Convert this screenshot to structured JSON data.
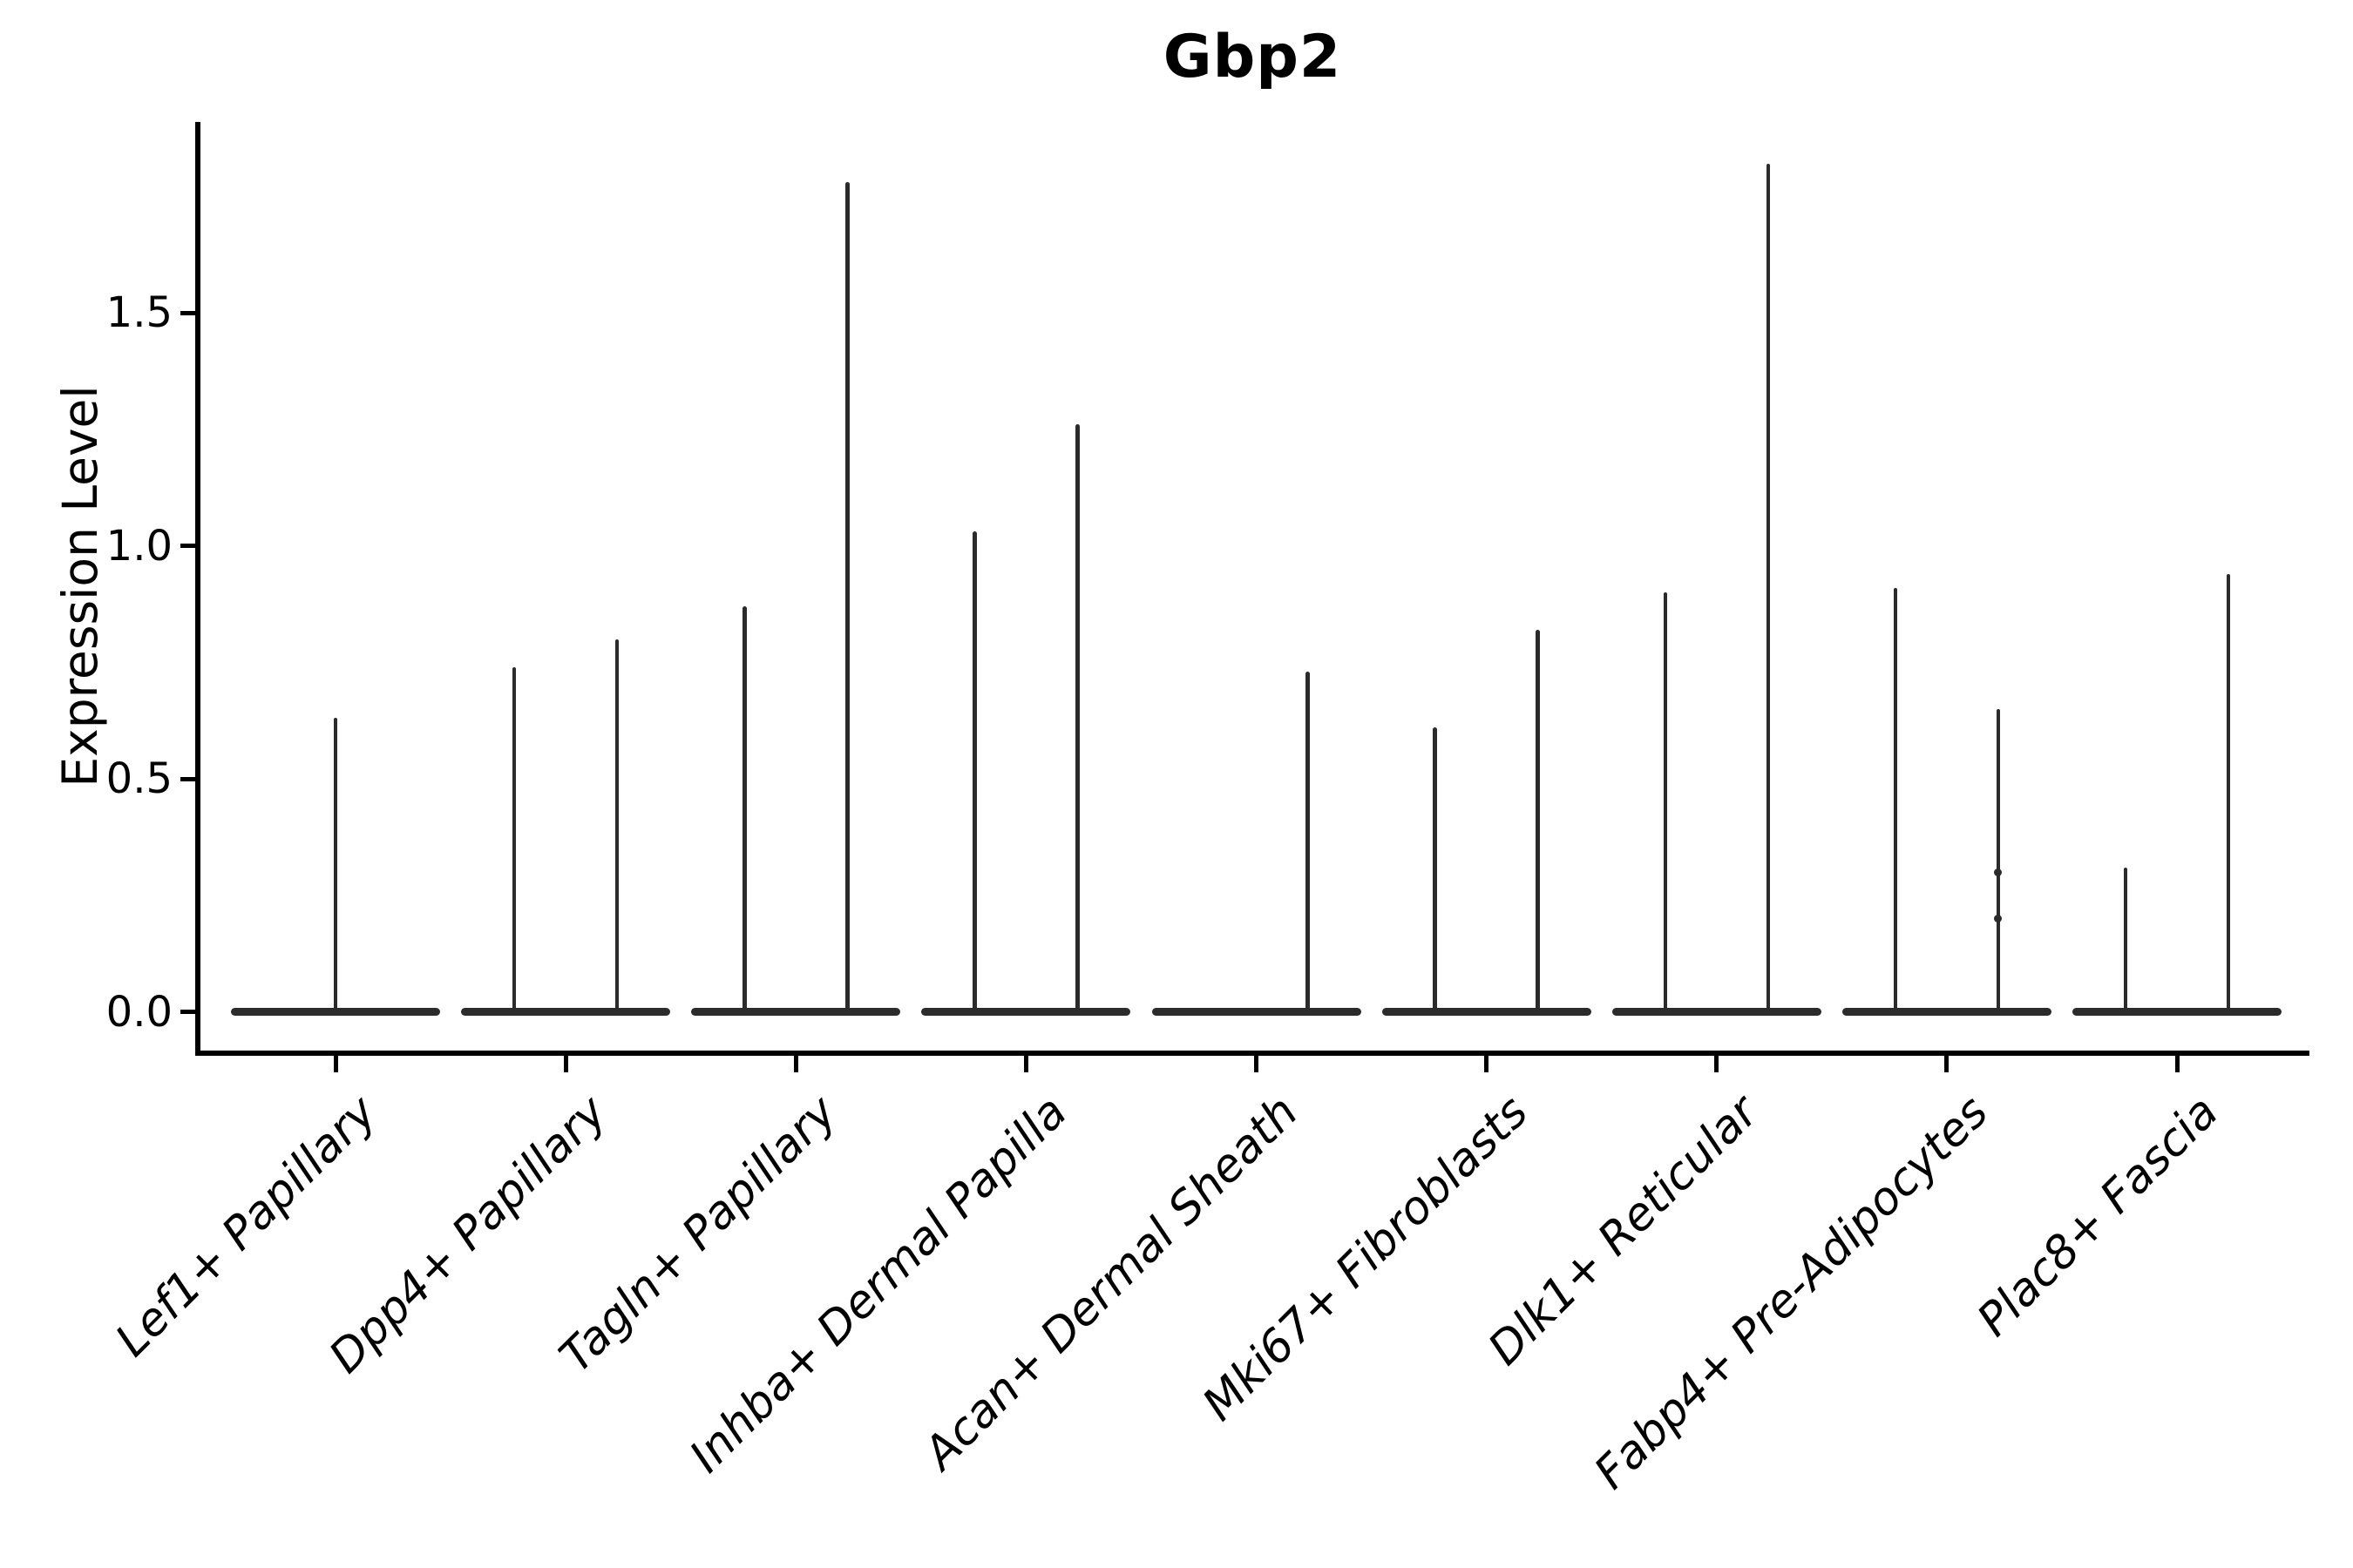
{
  "chart_data": {
    "type": "violin",
    "title": "Gbp2",
    "ylabel": "Expression Level",
    "xlabel": "",
    "grid": false,
    "legend": "none",
    "ylim": [
      -0.09,
      1.91
    ],
    "yticks": [
      {
        "value": 0.0,
        "label": "0.0"
      },
      {
        "value": 0.5,
        "label": "0.5"
      },
      {
        "value": 1.0,
        "label": "1.0"
      },
      {
        "value": 1.5,
        "label": "1.5"
      }
    ],
    "description": "Zero-inflated violin plot; each cluster shows a flat violin body at expression 0 with thin density spikes rising to the cluster maximum. Most clusters contain two adjacent violins (left/right).",
    "categories": [
      {
        "label": "Lef1+ Papillary",
        "violins": [
          {
            "position": "center",
            "max": 0.63
          }
        ]
      },
      {
        "label": "Dpp4+ Papillary",
        "violins": [
          {
            "position": "left",
            "max": 0.74
          },
          {
            "position": "right",
            "max": 0.8
          }
        ]
      },
      {
        "label": "Tagln+ Papillary",
        "violins": [
          {
            "position": "left",
            "max": 0.87
          },
          {
            "position": "right",
            "max": 1.78
          }
        ]
      },
      {
        "label": "Inhba+ Dermal Papilla",
        "violins": [
          {
            "position": "left",
            "max": 1.03
          },
          {
            "position": "right",
            "max": 1.26
          }
        ]
      },
      {
        "label": "Acan+ Dermal Sheath",
        "violins": [
          {
            "position": "left",
            "max": 0.0
          },
          {
            "position": "right",
            "max": 0.73
          }
        ]
      },
      {
        "label": "Mki67+ Fibroblasts",
        "violins": [
          {
            "position": "left",
            "max": 0.61
          },
          {
            "position": "right",
            "max": 0.82
          }
        ]
      },
      {
        "label": "Dlk1+ Reticular",
        "violins": [
          {
            "position": "left",
            "max": 0.9
          },
          {
            "position": "right",
            "max": 1.82
          }
        ]
      },
      {
        "label": "Fabp4+ Pre-Adipocytes",
        "violins": [
          {
            "position": "left",
            "max": 0.91
          },
          {
            "position": "right",
            "max": 0.65,
            "knots": [
              0.3,
              0.2
            ]
          }
        ]
      },
      {
        "label": "Plac8+ Fascia",
        "violins": [
          {
            "position": "left",
            "max": 0.31
          },
          {
            "position": "right",
            "max": 0.94
          }
        ]
      }
    ],
    "colors": {
      "violin": "#2b2b2b",
      "axis": "#000000",
      "text": "#000000",
      "background": "#ffffff"
    }
  }
}
